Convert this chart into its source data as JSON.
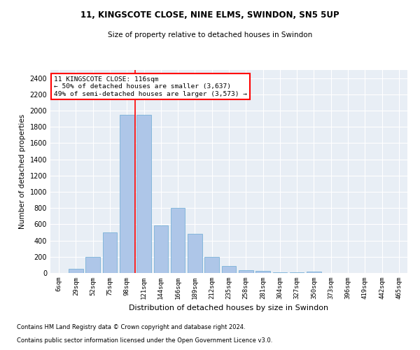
{
  "title1": "11, KINGSCOTE CLOSE, NINE ELMS, SWINDON, SN5 5UP",
  "title2": "Size of property relative to detached houses in Swindon",
  "xlabel": "Distribution of detached houses by size in Swindon",
  "ylabel": "Number of detached properties",
  "footnote1": "Contains HM Land Registry data © Crown copyright and database right 2024.",
  "footnote2": "Contains public sector information licensed under the Open Government Licence v3.0.",
  "annotation_line1": "11 KINGSCOTE CLOSE: 116sqm",
  "annotation_line2": "← 50% of detached houses are smaller (3,637)",
  "annotation_line3": "49% of semi-detached houses are larger (3,573) →",
  "bar_color": "#aec6e8",
  "bar_edge_color": "#6aaad4",
  "vline_color": "red",
  "bg_color": "#e8eef5",
  "categories": [
    "6sqm",
    "29sqm",
    "52sqm",
    "75sqm",
    "98sqm",
    "121sqm",
    "144sqm",
    "166sqm",
    "189sqm",
    "212sqm",
    "235sqm",
    "258sqm",
    "281sqm",
    "304sqm",
    "327sqm",
    "350sqm",
    "373sqm",
    "396sqm",
    "419sqm",
    "442sqm",
    "465sqm"
  ],
  "values": [
    0,
    50,
    200,
    500,
    1950,
    1950,
    590,
    800,
    480,
    200,
    90,
    35,
    25,
    10,
    5,
    15,
    3,
    2,
    1,
    1,
    2
  ],
  "ylim": [
    0,
    2500
  ],
  "yticks": [
    0,
    200,
    400,
    600,
    800,
    1000,
    1200,
    1400,
    1600,
    1800,
    2000,
    2200,
    2400
  ],
  "vline_x": 4.5,
  "figsize": [
    6.0,
    5.0
  ],
  "dpi": 100
}
